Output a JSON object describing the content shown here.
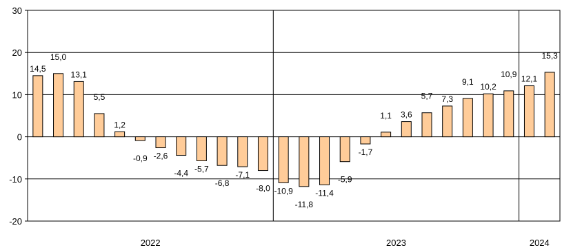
{
  "chart_data": {
    "type": "bar",
    "title": "",
    "xlabel": "",
    "ylabel": "",
    "ylim": [
      -20,
      30
    ],
    "yticks": [
      -20,
      -10,
      0,
      10,
      20,
      30
    ],
    "ytick_labels": [
      "-20",
      "-10",
      "0",
      "10",
      "20",
      "30"
    ],
    "grid": true,
    "legend": "none",
    "bar_color": "#FFCC99",
    "bar_edge_color": "#000000",
    "values": [
      14.5,
      15.0,
      13.1,
      5.5,
      1.2,
      -0.9,
      -2.6,
      -4.4,
      -5.7,
      -6.8,
      -7.1,
      -8.0,
      -10.9,
      -11.8,
      -11.4,
      -5.9,
      -1.7,
      1.1,
      3.6,
      5.7,
      7.3,
      9.1,
      10.2,
      10.9,
      12.1,
      15.3
    ],
    "labels": [
      "14,5",
      "15,0",
      "13,1",
      "5,5",
      "1,2",
      "-0,9",
      "-2,6",
      "-4,4",
      "-5,7",
      "-6,8",
      "-7,1",
      "-8,0",
      "-10,9",
      "-11,8",
      "-11,4",
      "-5,9",
      "-1,7",
      "1,1",
      "3,6",
      "5,7",
      "7,3",
      "9,1",
      "10,2",
      "10,9",
      "12,1",
      "15,3"
    ],
    "year_groups": [
      {
        "label": "2022",
        "start": 0,
        "count": 12
      },
      {
        "label": "2023",
        "start": 12,
        "count": 12
      },
      {
        "label": "2024",
        "start": 24,
        "count": 2
      }
    ]
  }
}
